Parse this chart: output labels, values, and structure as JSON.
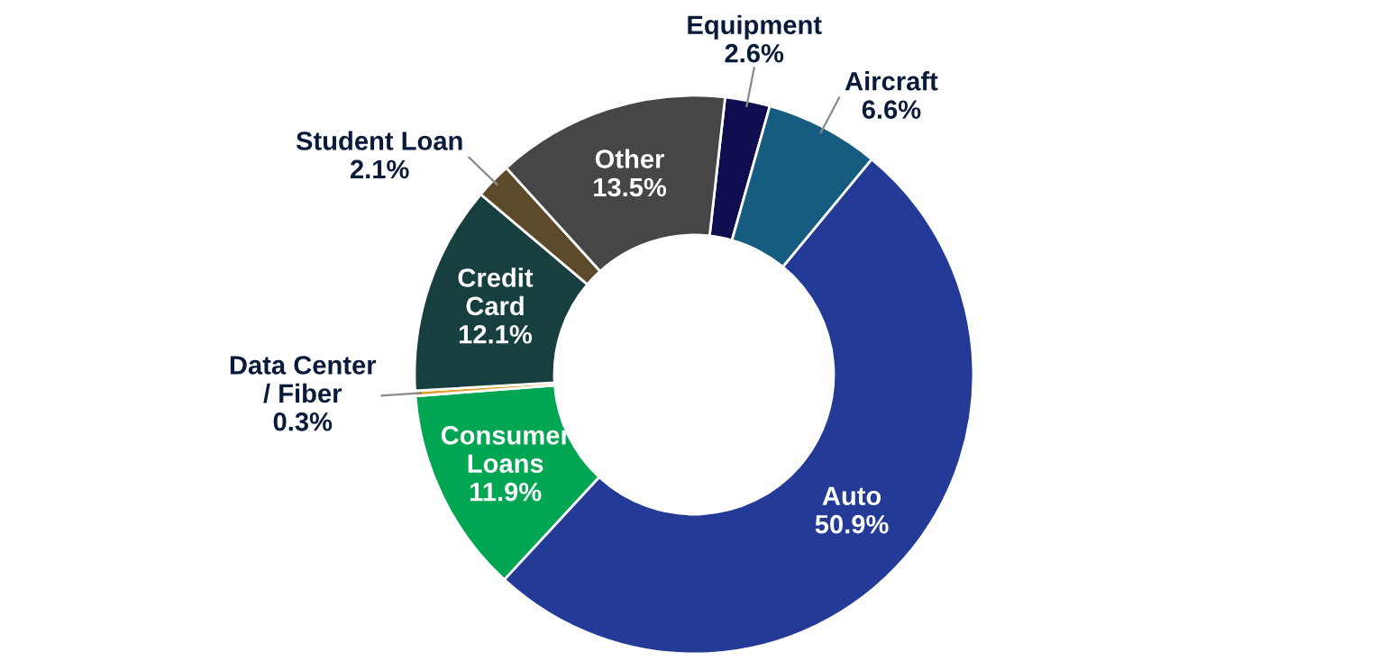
{
  "chart_data": {
    "type": "donut",
    "categories": [
      "Equipment",
      "Aircraft",
      "Auto",
      "Consumer\nLoans",
      "Data Center\n/ Fiber",
      "Credit\nCard",
      "Student Loan",
      "Other"
    ],
    "values": [
      2.6,
      6.6,
      50.9,
      11.9,
      0.3,
      12.1,
      2.1,
      13.5
    ],
    "value_labels": [
      "2.6%",
      "6.6%",
      "50.9%",
      "11.9%",
      "0.3%",
      "12.1%",
      "2.1%",
      "13.5%"
    ],
    "colors": [
      "#0d0d4f",
      "#155c80",
      "#233a96",
      "#00a651",
      "#e0a030",
      "#173f3f",
      "#5c4a2a",
      "#464646"
    ]
  }
}
